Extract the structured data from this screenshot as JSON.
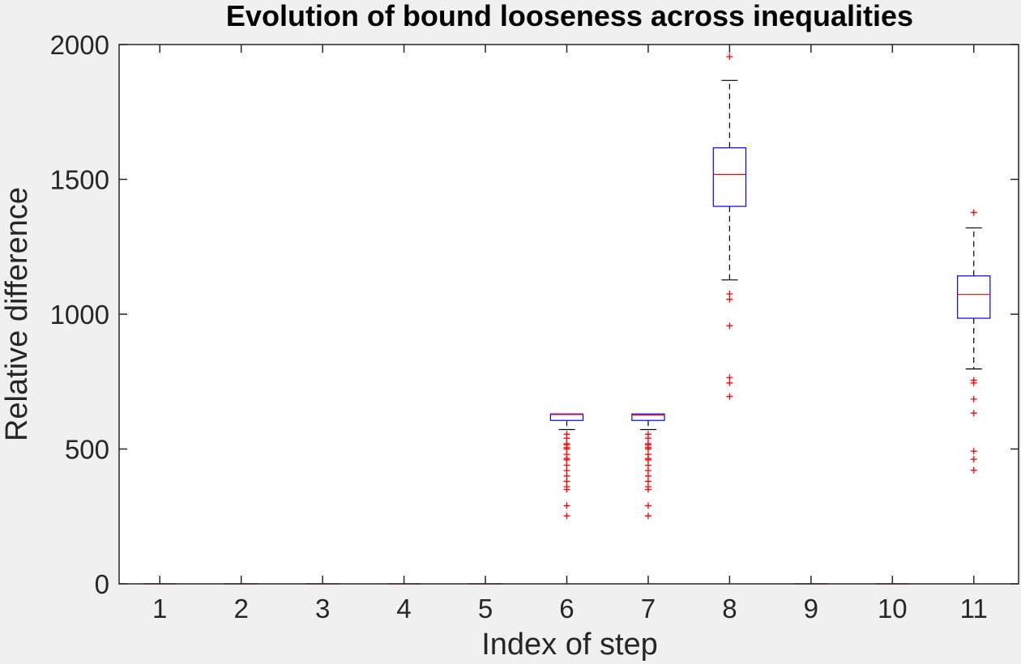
{
  "chart_data": {
    "type": "box",
    "title": "Evolution of bound looseness across inequalities",
    "xlabel": "Index of step",
    "ylabel": "Relative difference",
    "ylim": [
      0,
      2000
    ],
    "yticks": [
      "0",
      "500",
      "1000",
      "1500",
      "2000"
    ],
    "categories": [
      "1",
      "2",
      "3",
      "4",
      "5",
      "6",
      "7",
      "8",
      "9",
      "10",
      "11"
    ],
    "grid": false,
    "legend": "none",
    "colors": {
      "box": "#0000ff",
      "median": "#ff0000",
      "whisker": "#000000",
      "outlier": "#ff0000",
      "axes_bg": "#ffffff",
      "figure_bg": "#f0f0f0"
    },
    "boxes": [
      {
        "q1": 0,
        "median": 0,
        "q3": 0,
        "whisker_low": 0,
        "whisker_high": 0,
        "outliers": []
      },
      {
        "q1": 0,
        "median": 0,
        "q3": 0,
        "whisker_low": 0,
        "whisker_high": 0,
        "outliers": []
      },
      {
        "q1": 0,
        "median": 0,
        "q3": 0,
        "whisker_low": 0,
        "whisker_high": 0,
        "outliers": []
      },
      {
        "q1": 0,
        "median": 0,
        "q3": 0,
        "whisker_low": 0,
        "whisker_high": 0,
        "outliers": []
      },
      {
        "q1": 0,
        "median": 0,
        "q3": 0,
        "whisker_low": 0,
        "whisker_high": 0,
        "outliers": []
      },
      {
        "q1": 606,
        "median": 628,
        "q3": 630,
        "whisker_low": 572,
        "whisker_high": 630,
        "outliers": [
          555,
          540,
          520,
          515,
          505,
          500,
          480,
          465,
          460,
          440,
          420,
          400,
          380,
          360,
          350,
          290,
          252
        ]
      },
      {
        "q1": 606,
        "median": 626,
        "q3": 630,
        "whisker_low": 572,
        "whisker_high": 630,
        "outliers": [
          555,
          540,
          520,
          515,
          505,
          500,
          480,
          465,
          460,
          440,
          420,
          400,
          380,
          360,
          350,
          290,
          252
        ]
      },
      {
        "q1": 1400,
        "median": 1518,
        "q3": 1617,
        "whisker_low": 1127,
        "whisker_high": 1867,
        "outliers": [
          1955,
          1075,
          1055,
          957,
          765,
          745,
          695
        ]
      },
      {
        "q1": 0,
        "median": 0,
        "q3": 0,
        "whisker_low": 0,
        "whisker_high": 0,
        "outliers": []
      },
      {
        "q1": 0,
        "median": 0,
        "q3": 0,
        "whisker_low": 0,
        "whisker_high": 0,
        "outliers": []
      },
      {
        "q1": 985,
        "median": 1073,
        "q3": 1142,
        "whisker_low": 797,
        "whisker_high": 1320,
        "outliers": [
          1377,
          755,
          745,
          685,
          633,
          492,
          462,
          421
        ]
      }
    ]
  }
}
